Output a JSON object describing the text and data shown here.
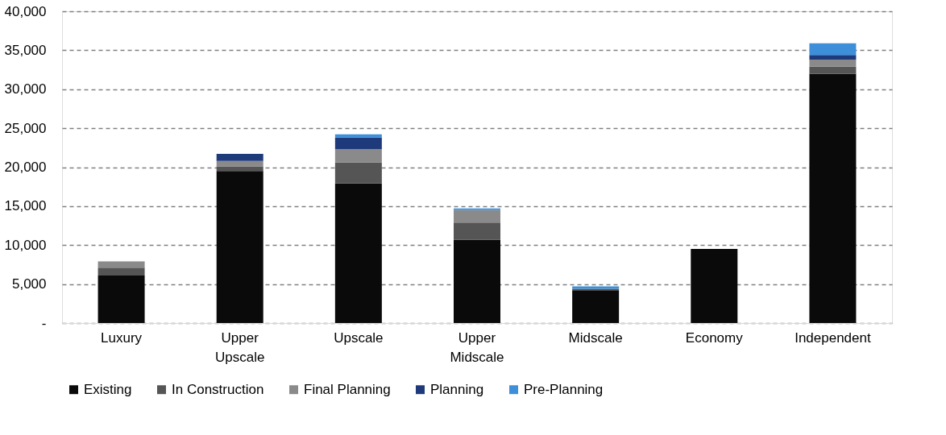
{
  "chart_data": {
    "type": "bar",
    "stacked": true,
    "categories": [
      "Luxury",
      "Upper Upscale",
      "Upscale",
      "Upper Midscale",
      "Midscale",
      "Economy",
      "Independent"
    ],
    "series": [
      {
        "name": "Existing",
        "color": "#0a0a0a",
        "values": [
          6100,
          19500,
          17900,
          10700,
          4200,
          9500,
          32000
        ]
      },
      {
        "name": "In Construction",
        "color": "#555555",
        "values": [
          1000,
          600,
          2700,
          2200,
          200,
          0,
          900
        ]
      },
      {
        "name": "Final Planning",
        "color": "#8a8a8a",
        "values": [
          800,
          700,
          1700,
          1600,
          0,
          0,
          900
        ]
      },
      {
        "name": "Planning",
        "color": "#1f3a7a",
        "values": [
          0,
          900,
          1500,
          0,
          0,
          0,
          600
        ]
      },
      {
        "name": "Pre-Planning",
        "color": "#3d8fd9",
        "values": [
          0,
          0,
          400,
          200,
          300,
          0,
          1500
        ]
      }
    ],
    "ylim": [
      0,
      40000
    ],
    "yticks": [
      {
        "value": 0,
        "label": "-"
      },
      {
        "value": 5000,
        "label": "5,000"
      },
      {
        "value": 10000,
        "label": "10,000"
      },
      {
        "value": 15000,
        "label": "15,000"
      },
      {
        "value": 20000,
        "label": "20,000"
      },
      {
        "value": 25000,
        "label": "25,000"
      },
      {
        "value": 30000,
        "label": "30,000"
      },
      {
        "value": 35000,
        "label": "35,000"
      },
      {
        "value": 40000,
        "label": "40,000"
      }
    ],
    "grid": "y",
    "line_style": "dashed",
    "legend": "bottom"
  }
}
